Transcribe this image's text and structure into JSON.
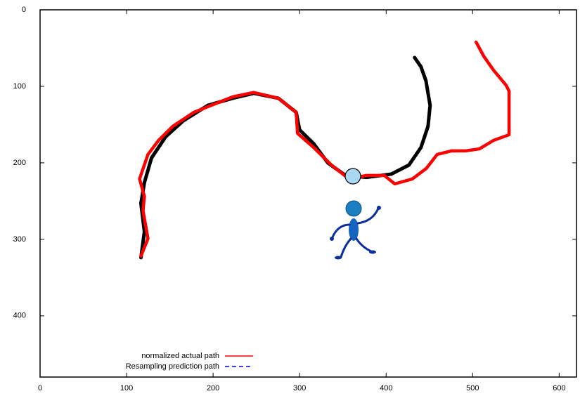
{
  "chart_data": {
    "type": "line",
    "xlim": [
      0,
      620
    ],
    "ylim": [
      0,
      480
    ],
    "y_inverted": true,
    "xticks": [
      0,
      100,
      200,
      300,
      400,
      500,
      600
    ],
    "yticks": [
      0,
      100,
      200,
      300,
      400
    ],
    "legend": "bottom-left",
    "series": [
      {
        "name": "normalized actual path",
        "color": "#ff0000",
        "dash": "solid",
        "x": [
          116.6,
          124.7,
          119,
          120.6,
          115,
          124.7,
          137,
          153.3,
          177.7,
          194,
          222.5,
          247,
          275.5,
          296,
          297.6,
          316.3,
          336.7,
          357,
          377.4,
          397.8,
          410,
          430.4,
          446.7,
          459,
          475.3,
          491.6,
          507.9,
          524.2,
          542.1,
          542.1,
          538.9,
          524.2,
          512.8,
          504
        ],
        "y": [
          322,
          299,
          262.4,
          244,
          221,
          189,
          170.6,
          152.3,
          134,
          126.6,
          113.8,
          108,
          115.6,
          134,
          161.5,
          180,
          202.8,
          221,
          216.5,
          216.5,
          227.5,
          221,
          207,
          189,
          184.4,
          184.4,
          181.7,
          170.6,
          163.3,
          106.4,
          99,
          79,
          60.6,
          42.2
        ]
      },
      {
        "name": "Resampling prediction path",
        "color": "#0000ff",
        "dash": "dashed",
        "x": [
          353,
          377.4,
          406,
          426.4,
          440.2
        ],
        "y": [
          216.5,
          219,
          214.7,
          202.8,
          180
        ]
      },
      {
        "color": "#000000",
        "dash": "solid",
        "x": [
          116.6,
          120.6,
          116.6,
          120.6,
          128.8,
          145.1,
          165.5,
          194,
          222.5,
          247,
          275.5,
          296,
          300,
          316.3,
          332.6,
          353,
          377.4,
          406,
          426.4,
          440.2,
          448.4,
          450.8,
          446,
          440.2,
          432.9
        ],
        "y": [
          323.9,
          290,
          253,
          225.7,
          193.6,
          166,
          145,
          124.8,
          115.6,
          109,
          115.6,
          134,
          157,
          175,
          200,
          216.5,
          219,
          214.7,
          202.8,
          180,
          152.3,
          124.8,
          92.7,
          74.3,
          62.4
        ]
      }
    ]
  }
}
